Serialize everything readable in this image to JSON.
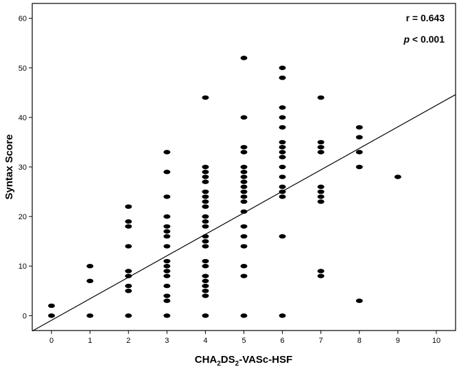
{
  "chart_data": {
    "type": "scatter",
    "title": "",
    "xlabel_main": "CHA",
    "xlabel_sub1": "2",
    "xlabel_mid": "DS",
    "xlabel_sub2": "2",
    "xlabel_end": "-VASc-HSF",
    "ylabel": "Syntax Score",
    "xlim": [
      -0.5,
      10.5
    ],
    "ylim": [
      -3,
      63
    ],
    "xticks": [
      0,
      1,
      2,
      3,
      4,
      5,
      6,
      7,
      8,
      9,
      10
    ],
    "yticks": [
      0,
      10,
      20,
      30,
      40,
      50,
      60
    ],
    "grid": false,
    "point_color": "#000000",
    "annotations": {
      "r": "r = 0.643",
      "p_italic": "p",
      "p_rest": " < 0.001"
    },
    "regression_line": {
      "x": [
        -0.5,
        10.5
      ],
      "y": [
        -3.1,
        44.6
      ]
    },
    "points": [
      [
        0,
        0
      ],
      [
        0,
        2
      ],
      [
        1,
        0
      ],
      [
        1,
        7
      ],
      [
        1,
        10
      ],
      [
        2,
        0
      ],
      [
        2,
        5
      ],
      [
        2,
        6
      ],
      [
        2,
        8
      ],
      [
        2,
        9
      ],
      [
        2,
        14
      ],
      [
        2,
        18
      ],
      [
        2,
        19
      ],
      [
        2,
        22
      ],
      [
        3,
        0
      ],
      [
        3,
        3
      ],
      [
        3,
        4
      ],
      [
        3,
        6
      ],
      [
        3,
        8
      ],
      [
        3,
        9
      ],
      [
        3,
        10
      ],
      [
        3,
        11
      ],
      [
        3,
        14
      ],
      [
        3,
        16
      ],
      [
        3,
        17
      ],
      [
        3,
        18
      ],
      [
        3,
        20
      ],
      [
        3,
        24
      ],
      [
        3,
        29
      ],
      [
        3,
        33
      ],
      [
        4,
        0
      ],
      [
        4,
        4
      ],
      [
        4,
        5
      ],
      [
        4,
        6
      ],
      [
        4,
        7
      ],
      [
        4,
        8
      ],
      [
        4,
        10
      ],
      [
        4,
        11
      ],
      [
        4,
        14
      ],
      [
        4,
        15
      ],
      [
        4,
        16
      ],
      [
        4,
        18
      ],
      [
        4,
        19
      ],
      [
        4,
        20
      ],
      [
        4,
        22
      ],
      [
        4,
        23
      ],
      [
        4,
        24
      ],
      [
        4,
        25
      ],
      [
        4,
        27
      ],
      [
        4,
        28
      ],
      [
        4,
        29
      ],
      [
        4,
        30
      ],
      [
        4,
        44
      ],
      [
        5,
        0
      ],
      [
        5,
        8
      ],
      [
        5,
        10
      ],
      [
        5,
        14
      ],
      [
        5,
        16
      ],
      [
        5,
        18
      ],
      [
        5,
        21
      ],
      [
        5,
        23
      ],
      [
        5,
        24
      ],
      [
        5,
        25
      ],
      [
        5,
        26
      ],
      [
        5,
        27
      ],
      [
        5,
        28
      ],
      [
        5,
        29
      ],
      [
        5,
        30
      ],
      [
        5,
        33
      ],
      [
        5,
        34
      ],
      [
        5,
        40
      ],
      [
        5,
        52
      ],
      [
        6,
        0
      ],
      [
        6,
        16
      ],
      [
        6,
        24
      ],
      [
        6,
        25
      ],
      [
        6,
        26
      ],
      [
        6,
        28
      ],
      [
        6,
        30
      ],
      [
        6,
        32
      ],
      [
        6,
        33
      ],
      [
        6,
        34
      ],
      [
        6,
        35
      ],
      [
        6,
        38
      ],
      [
        6,
        40
      ],
      [
        6,
        42
      ],
      [
        6,
        48
      ],
      [
        6,
        50
      ],
      [
        7,
        8
      ],
      [
        7,
        9
      ],
      [
        7,
        23
      ],
      [
        7,
        24
      ],
      [
        7,
        25
      ],
      [
        7,
        26
      ],
      [
        7,
        33
      ],
      [
        7,
        34
      ],
      [
        7,
        35
      ],
      [
        7,
        44
      ],
      [
        8,
        3
      ],
      [
        8,
        30
      ],
      [
        8,
        33
      ],
      [
        8,
        36
      ],
      [
        8,
        38
      ],
      [
        9,
        28
      ]
    ]
  }
}
